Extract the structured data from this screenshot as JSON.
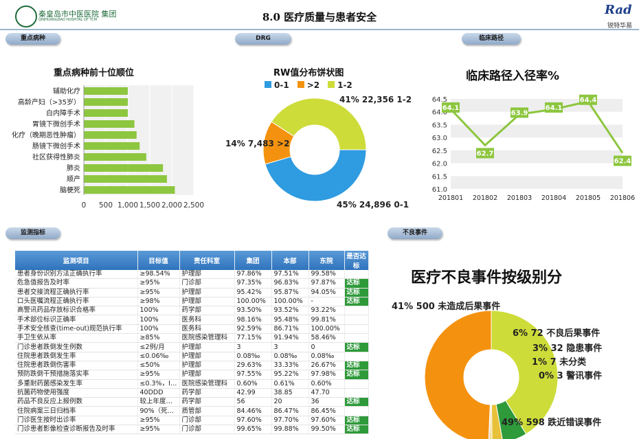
{
  "header": {
    "org_name": "秦皇岛市中医医院 集团",
    "org_sub": "QINHUANGDAO HOSPITAL OF TCM",
    "title": "8.0  医疗质量与患者安全",
    "brand": "Rad",
    "brand_sub": "锐特华易"
  },
  "tabs": {
    "key_disease": "重点病种",
    "drg": "DRG",
    "clinical_path": "临床路径",
    "monitor": "监测指标",
    "adverse": "不良事件"
  },
  "chart_data": [
    {
      "type": "bar",
      "title": "重点病种前十位顺位",
      "categories": [
        "辅助化疗",
        "高龄产妇（>35岁）",
        "白内障手术",
        "胃镜下微创手术",
        "化疗（晚期恶性肿瘤）",
        "肠镜下微创手术",
        "社区获得性肺炎",
        "肺炎",
        "顺产",
        "脑梗死"
      ],
      "values": [
        1000,
        1000,
        1000,
        1150,
        1200,
        1270,
        1420,
        1800,
        1890,
        2070
      ],
      "xticks": [
        "0",
        "500",
        "1,000",
        "1,500",
        "2,000",
        "2,500"
      ],
      "xlim": [
        0,
        2500
      ],
      "color": "#8dc63f"
    },
    {
      "type": "pie",
      "title": "RW值分布饼状图",
      "legend": [
        {
          "name": "0-1",
          "color": "#2f9be0"
        },
        {
          "name": ">2",
          "color": "#f4920f"
        },
        {
          "name": "1-2",
          "color": "#cddc39"
        }
      ],
      "slices": [
        {
          "name": "0-1",
          "value": 24896,
          "percent": "45%",
          "label": "45% 24,896 0-1",
          "color": "#2f9be0"
        },
        {
          "name": ">2",
          "value": 7483,
          "percent": "14%",
          "label": "14% 7,483 >2",
          "color": "#f4920f"
        },
        {
          "name": "1-2",
          "value": 22356,
          "percent": "41%",
          "label": "41% 22,356 1-2",
          "color": "#cddc39"
        }
      ]
    },
    {
      "type": "line",
      "title": "临床路径入径率%",
      "x": [
        "201801",
        "201802",
        "201803",
        "201804",
        "201805",
        "201806"
      ],
      "values": [
        64.1,
        62.7,
        63.9,
        64.1,
        64.4,
        62.4
      ],
      "labels": [
        "64.1",
        "62.7",
        "63.9",
        "64.1",
        "64.4",
        "62.4"
      ],
      "ylim": [
        61.0,
        64.5
      ],
      "yticks": [
        "61.0",
        "61.5",
        "62.0",
        "62.5",
        "63.0",
        "63.5",
        "64.0",
        "64.5"
      ],
      "color": "#8dc63f"
    },
    {
      "type": "pie",
      "title": "医疗不良事件按级别分",
      "slices": [
        {
          "name": "未造成后果事件",
          "value": 500,
          "percent": "41%",
          "label": "41% 500 未造成后果事件",
          "color": "#cddc39"
        },
        {
          "name": "不良后果事件",
          "value": 72,
          "percent": "6%",
          "label": "6% 72 不良后果事件",
          "color": "#2e9a3a"
        },
        {
          "name": "隐患事件",
          "value": 32,
          "percent": "3%",
          "label": "3% 32 隐患事件",
          "color": "#e8c13a"
        },
        {
          "name": "未分类",
          "value": 7,
          "percent": "1%",
          "label": "1% 7 未分类",
          "color": "#f3d98a"
        },
        {
          "name": "警讯事件",
          "value": 3,
          "percent": "0%",
          "label": "0% 3 警讯事件",
          "color": "#c2462a"
        },
        {
          "name": "跌近错误事件",
          "value": 598,
          "percent": "49%",
          "label": "49% 598 跌近错误事件",
          "color": "#f4920f"
        }
      ]
    }
  ],
  "monitor_table": {
    "headers": [
      "监测项目",
      "目标值",
      "责任科室",
      "集团",
      "本部",
      "东院",
      "是否达标"
    ],
    "rows": [
      [
        "患者身份识别方法正确执行率",
        "≥98.54%",
        "护理部",
        "97.86%",
        "97.51%",
        "99.58%",
        ""
      ],
      [
        "危急值报告及时率",
        "≥95%",
        "门诊部",
        "97.35%",
        "96.83%",
        "97.87%",
        "达标"
      ],
      [
        "患者交接流程正确执行率",
        "≥95%",
        "护理部",
        "95.42%",
        "95.87%",
        "94.05%",
        "达标"
      ],
      [
        "口头医嘱流程正确执行率",
        "≥98%",
        "护理部",
        "100.00%",
        "100.00%",
        "-",
        "达标"
      ],
      [
        "高警讯药品存放标识合格率",
        "100%",
        "药学部",
        "93.50%",
        "93.52%",
        "93.22%",
        ""
      ],
      [
        "手术部位标识正确率",
        "100%",
        "医务科",
        "98.16%",
        "95.48%",
        "99.81%",
        ""
      ],
      [
        "手术安全核查(time-out)规范执行率",
        "100%",
        "医务科",
        "92.59%",
        "86.71%",
        "100.00%",
        ""
      ],
      [
        "手卫生依从率",
        "≥85%",
        "医院感染管理科",
        "77.15%",
        "91.94%",
        "58.46%",
        ""
      ],
      [
        "门诊患者跌倒发生例数",
        "≤2例/月",
        "护理部",
        "3",
        "3",
        "0",
        "达标"
      ],
      [
        "住院患者跌倒发生率",
        "≤0.06‰",
        "护理部",
        "0.08‰",
        "0.08‰",
        "0.08‰",
        ""
      ],
      [
        "住院患者跌倒伤害率",
        "≤50%",
        "护理部",
        "29.63%",
        "33.33%",
        "26.67%",
        "达标"
      ],
      [
        "预防跌倒干预措施落实率",
        "≥95%",
        "护理部",
        "97.55%",
        "95.22%",
        "97.98%",
        "达标"
      ],
      [
        "多重耐药菌感染发生率",
        "≤0.3%，I…",
        "医院感染管理科",
        "0.60%",
        "0.61%",
        "0.60%",
        ""
      ],
      [
        "抗菌药物使用强度",
        "40DDD",
        "药学部",
        "42.99",
        "38.85",
        "47.70",
        ""
      ],
      [
        "药品不良反应上报例数",
        "较上年度…",
        "药学部",
        "56",
        "20",
        "36",
        "达标"
      ],
      [
        "住院病案三日归档率",
        "90%（死…",
        "质管部",
        "84.46%",
        "86.47%",
        "86.45%",
        ""
      ],
      [
        "门诊医生按时出诊率",
        "≥95%",
        "门诊部",
        "97.60%",
        "97.70%",
        "97.60%",
        "达标"
      ],
      [
        "门诊患者影像检查诊断报告及时率",
        "≥95%",
        "门诊部",
        "99.65%",
        "99.88%",
        "99.50%",
        "达标"
      ]
    ]
  }
}
